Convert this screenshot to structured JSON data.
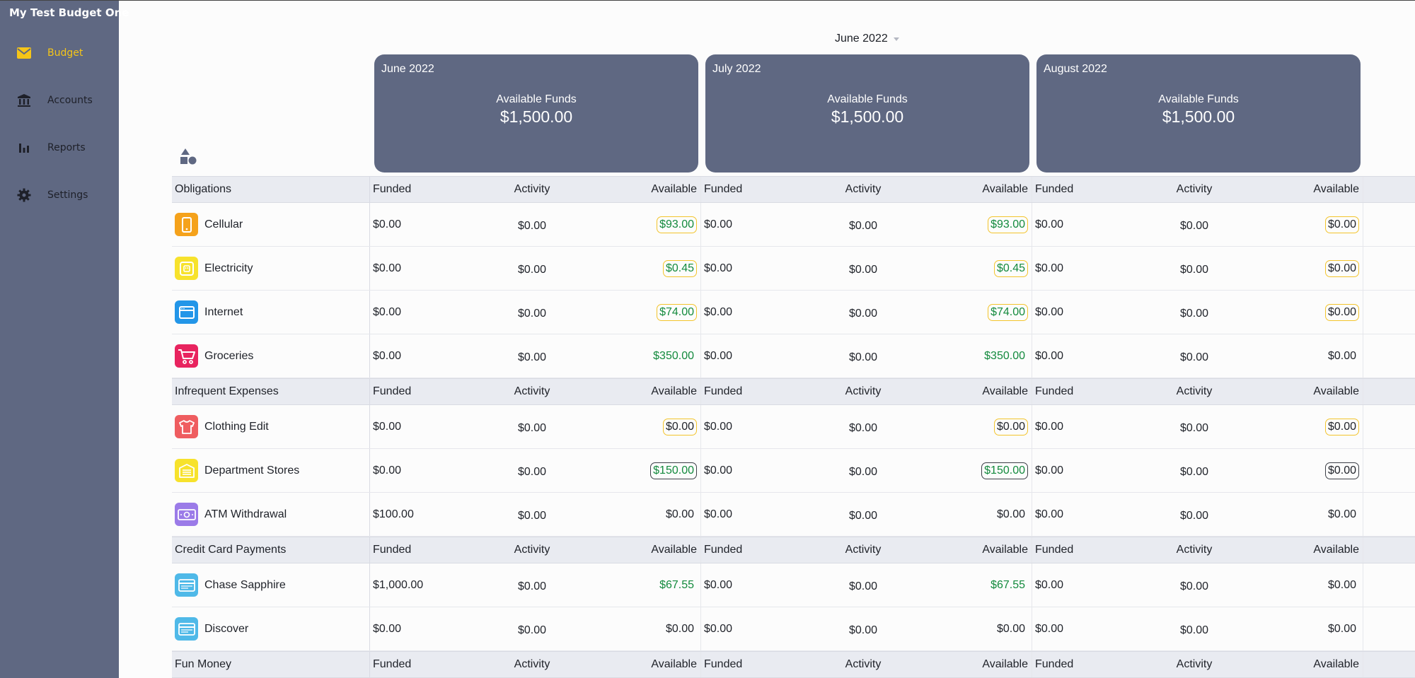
{
  "app": {
    "title": "My Test Budget One"
  },
  "sidebar": {
    "items": [
      {
        "label": "Budget",
        "icon": "envelope-icon",
        "active": true
      },
      {
        "label": "Accounts",
        "icon": "bank-icon"
      },
      {
        "label": "Reports",
        "icon": "bar-chart-icon"
      },
      {
        "label": "Settings",
        "icon": "gear-icon"
      }
    ]
  },
  "month_picker": {
    "selected": "June 2022"
  },
  "months": [
    {
      "title": "June 2022",
      "funds_label": "Available Funds",
      "funds": "$1,500.00"
    },
    {
      "title": "July 2022",
      "funds_label": "Available Funds",
      "funds": "$1,500.00"
    },
    {
      "title": "August 2022",
      "funds_label": "Available Funds",
      "funds": "$1,500.00"
    }
  ],
  "column_labels": {
    "funded": "Funded",
    "activity": "Activity",
    "available": "Available"
  },
  "groups": [
    {
      "name": "Obligations",
      "categories": [
        {
          "name": "Cellular",
          "icon": "phone-icon",
          "color": "#f5a21b",
          "months": [
            {
              "funded": "$0.00",
              "activity": "$0.00",
              "available": "$93.00",
              "style": "yellow green"
            },
            {
              "funded": "$0.00",
              "activity": "$0.00",
              "available": "$93.00",
              "style": "yellow green"
            },
            {
              "funded": "$0.00",
              "activity": "$0.00",
              "available": "$0.00",
              "style": "yellow"
            }
          ]
        },
        {
          "name": "Electricity",
          "icon": "power-outlet-icon",
          "color": "#f7e22c",
          "months": [
            {
              "funded": "$0.00",
              "activity": "$0.00",
              "available": "$0.45",
              "style": "yellow green"
            },
            {
              "funded": "$0.00",
              "activity": "$0.00",
              "available": "$0.45",
              "style": "yellow green"
            },
            {
              "funded": "$0.00",
              "activity": "$0.00",
              "available": "$0.00",
              "style": "yellow"
            }
          ]
        },
        {
          "name": "Internet",
          "icon": "browser-window-icon",
          "color": "#2396e8",
          "months": [
            {
              "funded": "$0.00",
              "activity": "$0.00",
              "available": "$74.00",
              "style": "yellow green"
            },
            {
              "funded": "$0.00",
              "activity": "$0.00",
              "available": "$74.00",
              "style": "yellow green"
            },
            {
              "funded": "$0.00",
              "activity": "$0.00",
              "available": "$0.00",
              "style": "yellow"
            }
          ]
        },
        {
          "name": "Groceries",
          "icon": "shopping-cart-icon",
          "color": "#e8245f",
          "months": [
            {
              "funded": "$0.00",
              "activity": "$0.00",
              "available": "$350.00",
              "style": "green"
            },
            {
              "funded": "$0.00",
              "activity": "$0.00",
              "available": "$350.00",
              "style": "green"
            },
            {
              "funded": "$0.00",
              "activity": "$0.00",
              "available": "$0.00",
              "style": ""
            }
          ]
        }
      ]
    },
    {
      "name": "Infrequent Expenses",
      "categories": [
        {
          "name": "Clothing Edit",
          "icon": "t-shirt-icon",
          "color": "#ef5d60",
          "months": [
            {
              "funded": "$0.00",
              "activity": "$0.00",
              "available": "$0.00",
              "style": "yellow"
            },
            {
              "funded": "$0.00",
              "activity": "$0.00",
              "available": "$0.00",
              "style": "yellow"
            },
            {
              "funded": "$0.00",
              "activity": "$0.00",
              "available": "$0.00",
              "style": "yellow"
            }
          ]
        },
        {
          "name": "Department Stores",
          "icon": "storefront-icon",
          "color": "#f7e22c",
          "months": [
            {
              "funded": "$0.00",
              "activity": "$0.00",
              "available": "$150.00",
              "style": "dark green"
            },
            {
              "funded": "$0.00",
              "activity": "$0.00",
              "available": "$150.00",
              "style": "dark green"
            },
            {
              "funded": "$0.00",
              "activity": "$0.00",
              "available": "$0.00",
              "style": "dark"
            }
          ]
        },
        {
          "name": "ATM Withdrawal",
          "icon": "cash-icon",
          "color": "#9b7be8",
          "months": [
            {
              "funded": "$100.00",
              "activity": "$0.00",
              "available": "$0.00",
              "style": ""
            },
            {
              "funded": "$0.00",
              "activity": "$0.00",
              "available": "$0.00",
              "style": ""
            },
            {
              "funded": "$0.00",
              "activity": "$0.00",
              "available": "$0.00",
              "style": ""
            }
          ]
        }
      ]
    },
    {
      "name": "Credit Card Payments",
      "categories": [
        {
          "name": "Chase Sapphire",
          "icon": "credit-card-icon",
          "color": "#4fb9e8",
          "months": [
            {
              "funded": "$1,000.00",
              "activity": "$0.00",
              "available": "$67.55",
              "style": "green"
            },
            {
              "funded": "$0.00",
              "activity": "$0.00",
              "available": "$67.55",
              "style": "green"
            },
            {
              "funded": "$0.00",
              "activity": "$0.00",
              "available": "$0.00",
              "style": ""
            }
          ]
        },
        {
          "name": "Discover",
          "icon": "credit-card-icon",
          "color": "#4fb9e8",
          "months": [
            {
              "funded": "$0.00",
              "activity": "$0.00",
              "available": "$0.00",
              "style": ""
            },
            {
              "funded": "$0.00",
              "activity": "$0.00",
              "available": "$0.00",
              "style": ""
            },
            {
              "funded": "$0.00",
              "activity": "$0.00",
              "available": "$0.00",
              "style": ""
            }
          ]
        }
      ]
    },
    {
      "name": "Fun Money",
      "categories": []
    }
  ]
}
